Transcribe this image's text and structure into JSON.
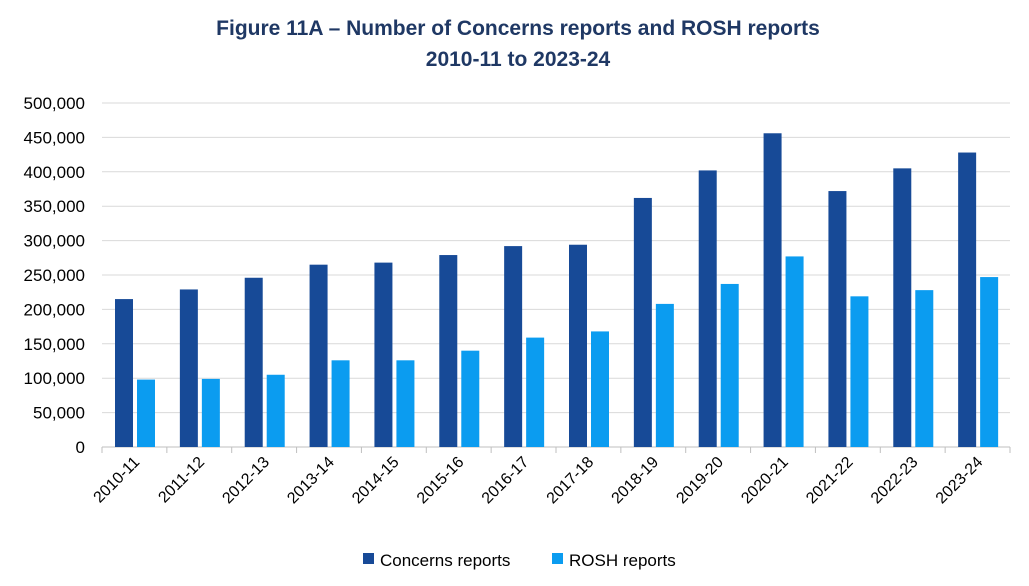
{
  "chart_data": {
    "type": "bar",
    "title": "Figure 11A – Number of Concerns reports and ROSH reports",
    "subtitle": "2010-11 to 2023-24",
    "categories": [
      "2010-11",
      "2011-12",
      "2012-13",
      "2013-14",
      "2014-15",
      "2015-16",
      "2016-17",
      "2017-18",
      "2018-19",
      "2019-20",
      "2020-21",
      "2021-22",
      "2022-23",
      "2023-24"
    ],
    "series": [
      {
        "name": "Concerns reports",
        "color": "#174a97",
        "values": [
          215000,
          229000,
          246000,
          265000,
          268000,
          279000,
          292000,
          294000,
          362000,
          402000,
          456000,
          372000,
          405000,
          428000
        ]
      },
      {
        "name": "ROSH reports",
        "color": "#0b9cf0",
        "values": [
          98000,
          99000,
          105000,
          126000,
          126000,
          140000,
          159000,
          168000,
          208000,
          237000,
          277000,
          219000,
          228000,
          247000
        ]
      }
    ],
    "ylim": [
      0,
      500000
    ],
    "yticks": [
      "0",
      "50,000",
      "100,000",
      "150,000",
      "200,000",
      "250,000",
      "300,000",
      "350,000",
      "400,000",
      "450,000",
      "500,000"
    ],
    "ytick_values": [
      0,
      50000,
      100000,
      150000,
      200000,
      250000,
      300000,
      350000,
      400000,
      450000,
      500000
    ],
    "grid": true,
    "legend_position": "bottom",
    "xlabel": "",
    "ylabel": ""
  }
}
